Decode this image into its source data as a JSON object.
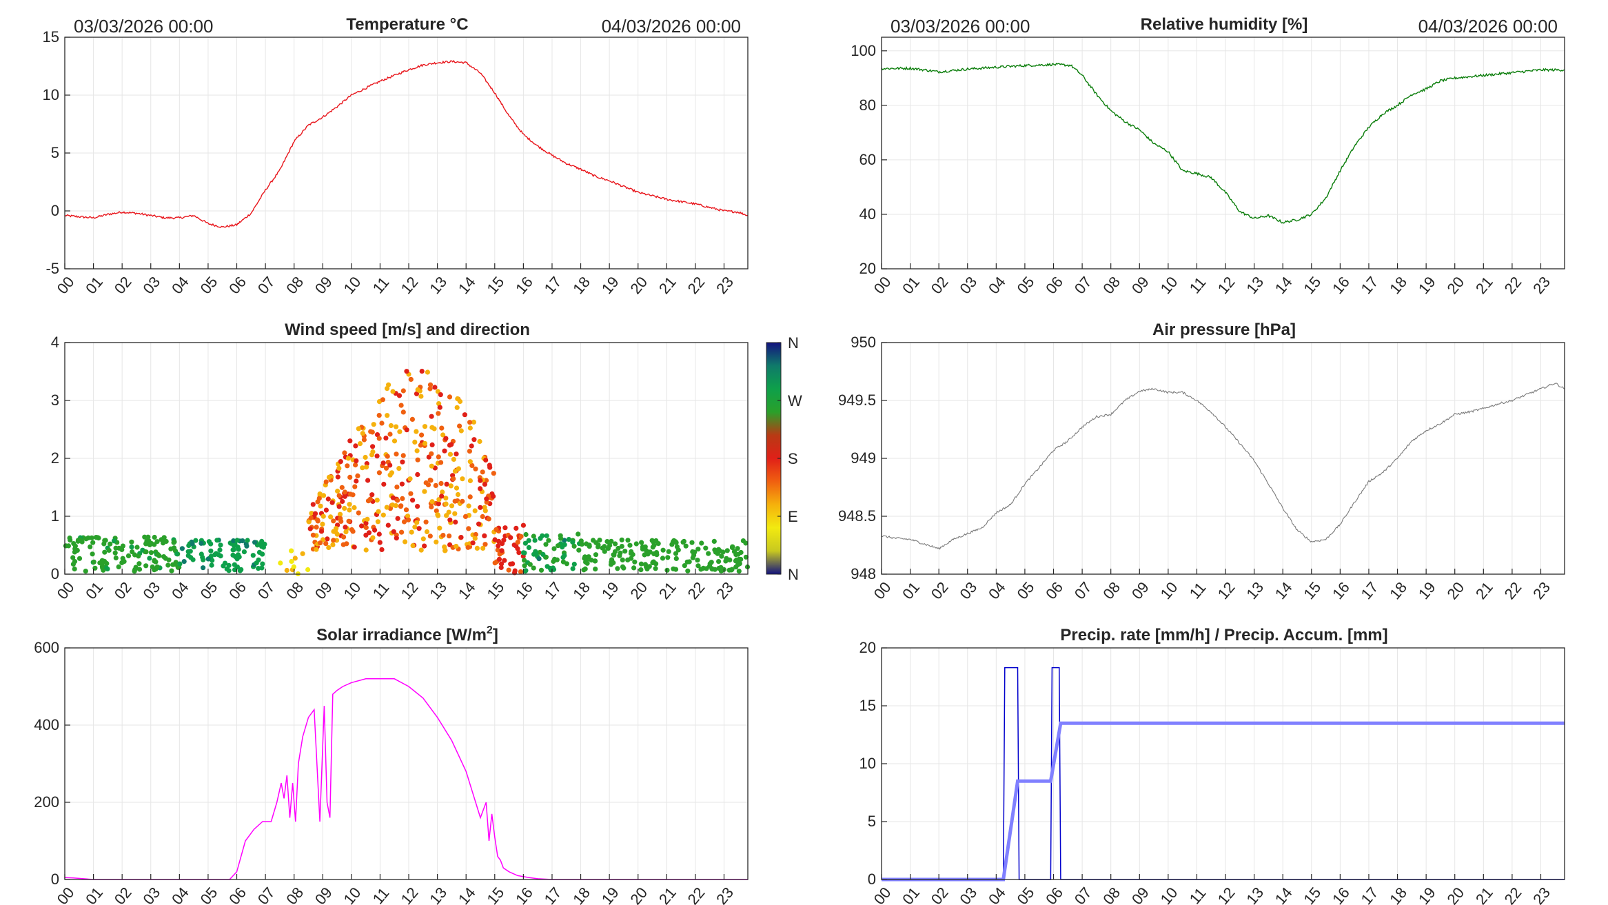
{
  "chart_data": [
    {
      "id": "temperature",
      "type": "line",
      "title": "Temperature °C",
      "date_left": "03/03/2026 00:00",
      "date_right": "04/03/2026 00:00",
      "color": "#e8151b",
      "ylim": [
        -5,
        15
      ],
      "yticks": [
        -5,
        0,
        5,
        10,
        15
      ],
      "xlim": [
        0,
        23.83
      ],
      "x_hours": [
        0,
        0.5,
        1,
        1.5,
        2,
        2.5,
        3,
        3.5,
        4,
        4.5,
        5,
        5.5,
        6,
        6.5,
        7,
        7.5,
        8,
        8.5,
        9,
        9.5,
        10,
        10.5,
        11,
        11.5,
        12,
        12.5,
        13,
        13.5,
        14,
        14.5,
        15,
        15.5,
        16,
        16.5,
        17,
        17.5,
        18,
        18.5,
        19,
        19.5,
        20,
        20.5,
        21,
        21.5,
        22,
        22.5,
        23,
        23.5,
        23.83
      ],
      "values": [
        -0.4,
        -0.5,
        -0.6,
        -0.3,
        -0.1,
        -0.2,
        -0.4,
        -0.6,
        -0.6,
        -0.4,
        -1.1,
        -1.4,
        -1.2,
        -0.2,
        1.8,
        3.5,
        6.0,
        7.4,
        8.1,
        9.0,
        10.0,
        10.6,
        11.2,
        11.7,
        12.2,
        12.6,
        12.8,
        12.9,
        12.8,
        11.9,
        10.2,
        8.2,
        6.6,
        5.6,
        4.8,
        4.1,
        3.6,
        3.0,
        2.6,
        2.1,
        1.6,
        1.3,
        1.0,
        0.8,
        0.6,
        0.3,
        0.0,
        -0.1,
        -0.4
      ],
      "xticklabels": [
        "00",
        "01",
        "02",
        "03",
        "04",
        "05",
        "06",
        "07",
        "08",
        "09",
        "10",
        "11",
        "12",
        "13",
        "14",
        "15",
        "16",
        "17",
        "18",
        "19",
        "20",
        "21",
        "22",
        "23"
      ]
    },
    {
      "id": "humidity",
      "type": "line",
      "title": "Relative humidity [%]",
      "date_left": "03/03/2026 00:00",
      "date_right": "04/03/2026 00:00",
      "color": "#0a7d0a",
      "ylim": [
        20,
        105
      ],
      "yticks": [
        20,
        40,
        60,
        80,
        100
      ],
      "xlim": [
        0,
        23.83
      ],
      "x_hours": [
        0,
        1,
        1.5,
        2,
        3,
        4,
        5,
        6,
        6.6,
        7,
        7.5,
        8,
        8.5,
        9,
        9.5,
        10,
        10.5,
        11,
        11.5,
        12,
        12.5,
        13,
        13.5,
        14,
        14.5,
        15,
        15.5,
        16,
        16.5,
        17,
        17.5,
        18,
        18.5,
        19,
        19.5,
        20,
        21,
        22,
        23,
        23.83
      ],
      "values": [
        93.5,
        93.6,
        93.0,
        92.3,
        93.3,
        94.0,
        94.6,
        95.0,
        94.7,
        91.0,
        84.0,
        78.0,
        74.0,
        71.0,
        66.0,
        63.0,
        56.0,
        55.0,
        53.5,
        48.0,
        41.0,
        38.5,
        39.5,
        37.0,
        38.0,
        40.0,
        46.0,
        56.0,
        65.0,
        72.0,
        77.0,
        80.0,
        84.0,
        86.0,
        89.0,
        90.0,
        91.0,
        92.0,
        93.0,
        93.0
      ]
    },
    {
      "id": "wind",
      "type": "scatter",
      "title": "Wind speed [m/s] and direction",
      "ylim": [
        0,
        4
      ],
      "yticks": [
        0,
        1,
        2,
        3,
        4
      ],
      "xlim": [
        0,
        23.83
      ],
      "colorbar_labels": [
        "N",
        "W",
        "S",
        "E",
        "N"
      ],
      "colorbar_stops": [
        "#2b2ba8",
        "#0f7a7a",
        "#0a9a3a",
        "#2bb52b",
        "#c8d11e",
        "#f0e10e",
        "#f4a30c",
        "#f06a0c",
        "#e22218",
        "#d74a12",
        "#f2a81a",
        "#f2e812",
        "#b8c424",
        "#13137f"
      ],
      "groups": [
        {
          "name": "night-0-4",
          "hours": [
            0,
            4
          ],
          "speed_min": 0.05,
          "speed_max": 0.65,
          "direction_deg_min": 260,
          "direction_deg_max": 290,
          "count": 130
        },
        {
          "name": "night-4-7",
          "hours": [
            4,
            7
          ],
          "speed_min": 0.05,
          "speed_max": 0.6,
          "direction_deg_min": 300,
          "direction_deg_max": 330,
          "count": 90
        },
        {
          "name": "morning-7.5-8.5",
          "hours": [
            7.5,
            8.5
          ],
          "speed_min": 0.0,
          "speed_max": 0.45,
          "direction_deg_min": 90,
          "direction_deg_max": 130,
          "count": 10
        },
        {
          "name": "day-8.5-15",
          "hours": [
            8.5,
            15.0
          ],
          "speed_min": 0.4,
          "speed_max": 3.55,
          "direction_deg_min": 110,
          "direction_deg_max": 200,
          "count": 420
        },
        {
          "name": "afternoon-15-16",
          "hours": [
            15.0,
            16.0
          ],
          "speed_min": 0.0,
          "speed_max": 0.9,
          "direction_deg_min": 170,
          "direction_deg_max": 200,
          "count": 40
        },
        {
          "name": "evening-16-18",
          "hours": [
            16.0,
            18.0
          ],
          "speed_min": 0.05,
          "speed_max": 0.7,
          "direction_deg_min": 260,
          "direction_deg_max": 330,
          "count": 60
        },
        {
          "name": "night-18-24",
          "hours": [
            18.0,
            23.83
          ],
          "speed_min": 0.05,
          "speed_max": 0.6,
          "direction_deg_min": 255,
          "direction_deg_max": 285,
          "count": 170
        }
      ]
    },
    {
      "id": "pressure",
      "type": "line",
      "title": "Air pressure [hPa]",
      "color": "#7a7a7a",
      "ylim": [
        948,
        950
      ],
      "yticks": [
        948,
        948.5,
        949,
        949.5,
        950
      ],
      "xlim": [
        0,
        23.83
      ],
      "x_hours": [
        0,
        0.5,
        1,
        1.5,
        2,
        2.5,
        3,
        3.5,
        4,
        4.5,
        5,
        5.5,
        6,
        6.5,
        7,
        7.5,
        8,
        8.5,
        9,
        9.5,
        10,
        10.5,
        11,
        11.5,
        12,
        12.5,
        13,
        13.5,
        14,
        14.5,
        15,
        15.5,
        16,
        16.5,
        17,
        17.5,
        18,
        18.5,
        19,
        19.5,
        20,
        20.5,
        21,
        21.5,
        22,
        22.5,
        23,
        23.5,
        23.83
      ],
      "values": [
        948.33,
        948.31,
        948.3,
        948.26,
        948.22,
        948.3,
        948.35,
        948.4,
        948.53,
        948.6,
        948.78,
        948.92,
        949.07,
        949.15,
        949.27,
        949.36,
        949.38,
        949.5,
        949.58,
        949.6,
        949.57,
        949.57,
        949.5,
        949.4,
        949.27,
        949.13,
        948.98,
        948.78,
        948.57,
        948.38,
        948.28,
        948.3,
        948.43,
        948.62,
        948.8,
        948.88,
        949.0,
        949.15,
        949.24,
        949.3,
        949.38,
        949.4,
        949.43,
        949.47,
        949.5,
        949.55,
        949.6,
        949.65,
        949.6
      ]
    },
    {
      "id": "solar",
      "type": "line",
      "title": "Solar irradiance [W/m",
      "title_superscript": "2",
      "title_suffix": "]",
      "color": "#ff00ff",
      "ylim": [
        0,
        600
      ],
      "yticks": [
        0,
        200,
        400,
        600
      ],
      "xlim": [
        0,
        23.83
      ],
      "x_hours": [
        0,
        0.3,
        1.0,
        5.75,
        6.0,
        6.3,
        6.6,
        6.9,
        7.2,
        7.4,
        7.55,
        7.65,
        7.75,
        7.85,
        7.95,
        8.05,
        8.15,
        8.3,
        8.5,
        8.7,
        8.9,
        9.05,
        9.15,
        9.25,
        9.35,
        9.5,
        9.7,
        10.0,
        10.5,
        11.0,
        11.5,
        12.0,
        12.5,
        13.0,
        13.5,
        14.0,
        14.5,
        14.7,
        14.8,
        14.9,
        15.0,
        15.1,
        15.2,
        15.3,
        15.5,
        15.8,
        16.2,
        16.5,
        17.0,
        23.83
      ],
      "values": [
        5,
        4,
        0,
        0,
        20,
        100,
        130,
        150,
        150,
        200,
        250,
        210,
        270,
        160,
        250,
        150,
        300,
        370,
        420,
        440,
        150,
        450,
        200,
        160,
        480,
        490,
        500,
        510,
        520,
        520,
        520,
        500,
        470,
        420,
        360,
        280,
        160,
        200,
        100,
        170,
        110,
        60,
        50,
        30,
        20,
        10,
        5,
        2,
        0,
        0
      ]
    },
    {
      "id": "precip",
      "type": "line",
      "title": "Precip. rate [mm/h] / Precip. Accum. [mm]",
      "ylim": [
        0,
        20
      ],
      "yticks": [
        0,
        5,
        10,
        15,
        20
      ],
      "xlim": [
        0,
        23.83
      ],
      "series": [
        {
          "name": "Precip. rate [mm/h]",
          "color": "#0000cc",
          "x_hours": [
            0,
            4.25,
            4.3,
            4.75,
            4.8,
            5.9,
            5.95,
            6.2,
            6.25,
            23.83
          ],
          "values": [
            0,
            0,
            18.3,
            18.3,
            0,
            0,
            18.3,
            18.3,
            0,
            0
          ]
        },
        {
          "name": "Precip. Accum. [mm]",
          "color": "#8080ff",
          "x_hours": [
            0,
            4.25,
            4.75,
            5.9,
            6.25,
            23.83
          ],
          "values": [
            0,
            0,
            8.5,
            8.5,
            13.5,
            13.5
          ]
        }
      ]
    }
  ]
}
